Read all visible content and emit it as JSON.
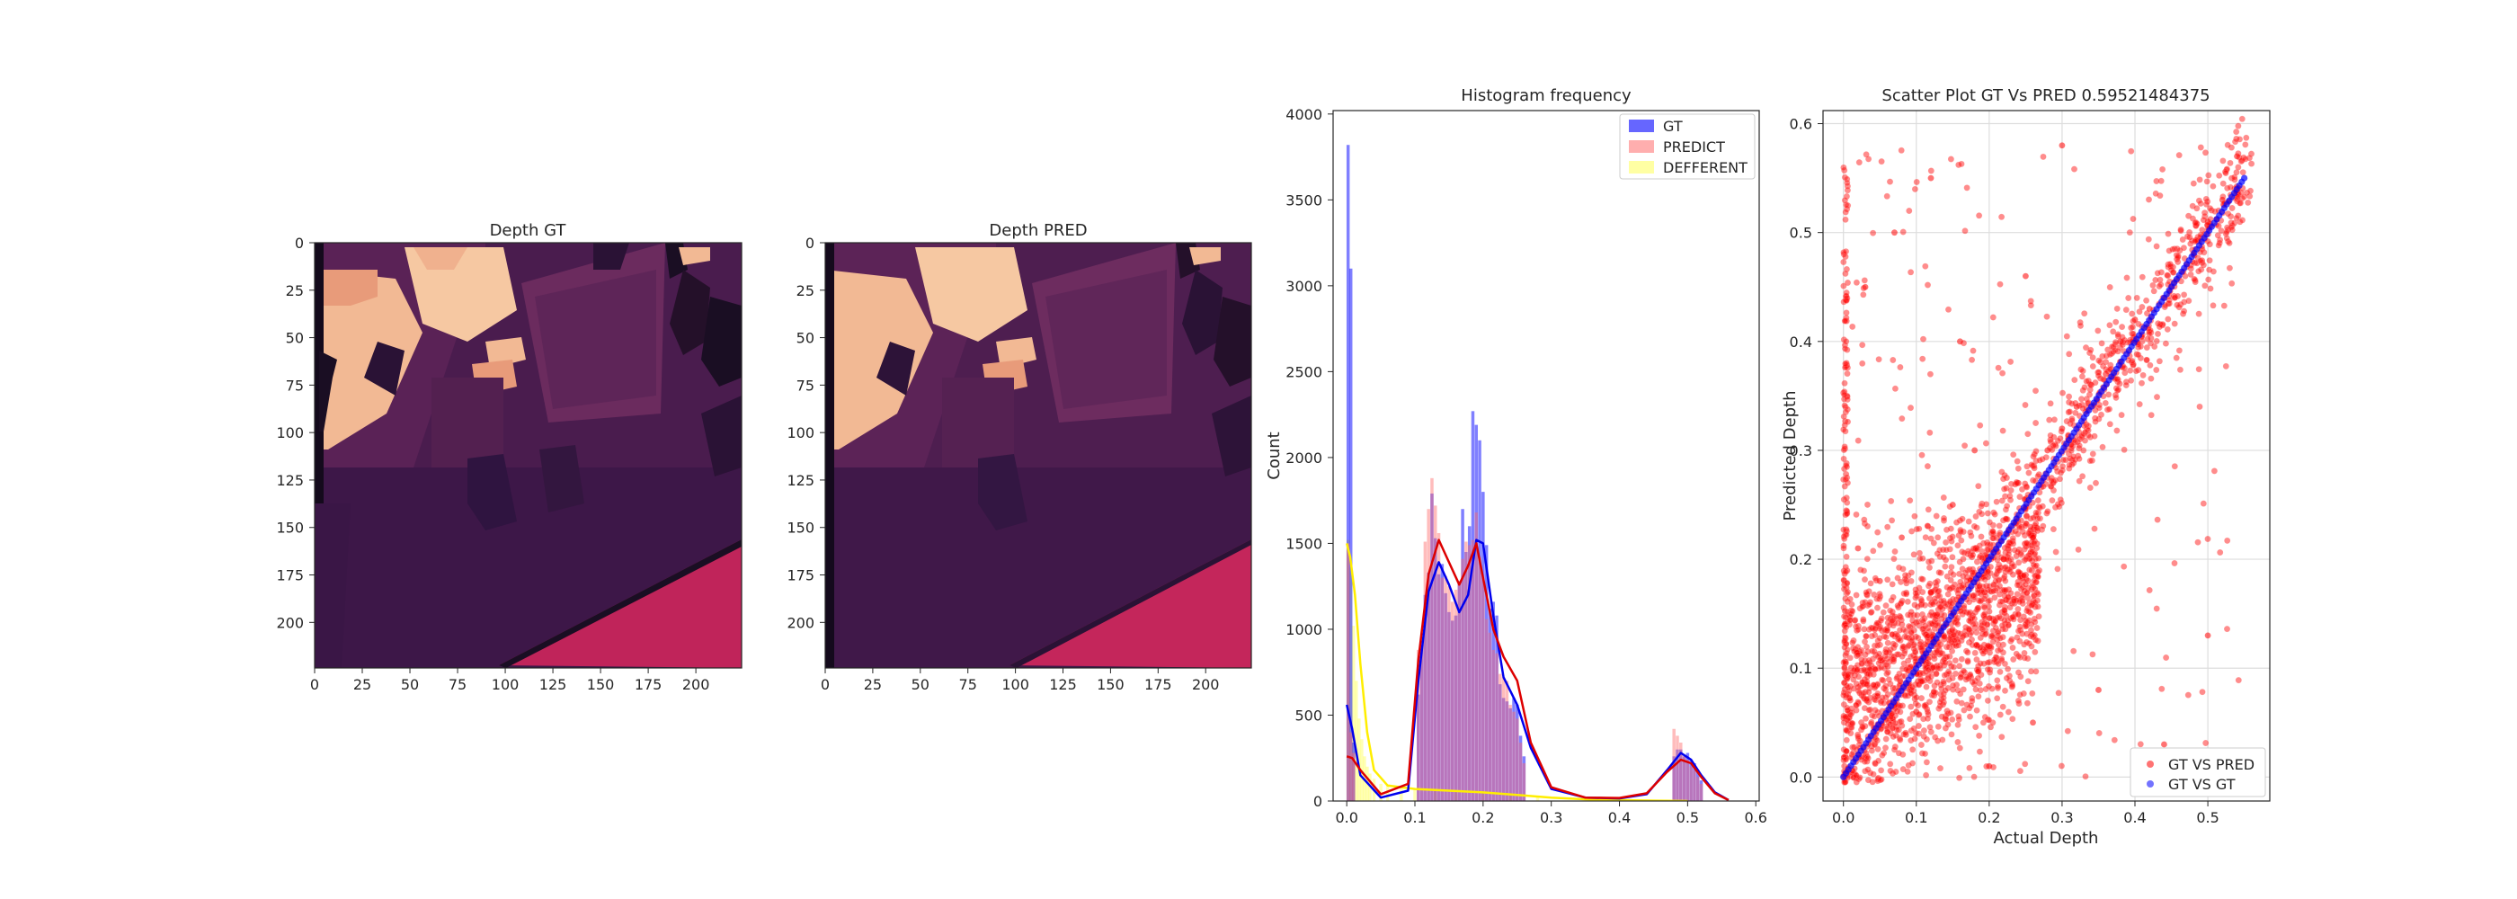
{
  "chart_data": [
    {
      "type": "heatmap",
      "title": "Depth GT",
      "xlim": [
        0,
        224
      ],
      "ylim": [
        224,
        0
      ],
      "xticks": [
        "0",
        "25",
        "50",
        "75",
        "100",
        "125",
        "150",
        "175",
        "200"
      ],
      "yticks": [
        "0",
        "25",
        "50",
        "75",
        "100",
        "125",
        "150",
        "175",
        "200"
      ],
      "colormap": "rocket",
      "note_values": "224x224 depth image; normalized depth 0-0.6 mapped to dark purple to light peach"
    },
    {
      "type": "heatmap",
      "title": "Depth PRED",
      "xlim": [
        0,
        224
      ],
      "ylim": [
        224,
        0
      ],
      "xticks": [
        "0",
        "25",
        "50",
        "75",
        "100",
        "125",
        "150",
        "175",
        "200"
      ],
      "yticks": [
        "0",
        "25",
        "50",
        "75",
        "100",
        "125",
        "150",
        "175",
        "200"
      ],
      "colormap": "rocket"
    },
    {
      "type": "bar",
      "title": "Histogram frequency",
      "xlabel": "",
      "ylabel": "Count",
      "xlim": [
        -0.02,
        0.605
      ],
      "ylim": [
        0,
        4020
      ],
      "xticks": [
        "0.0",
        "0.1",
        "0.2",
        "0.3",
        "0.4",
        "0.5",
        "0.6"
      ],
      "yticks": [
        "0",
        "500",
        "1000",
        "1500",
        "2000",
        "2500",
        "3000",
        "3500",
        "4000"
      ],
      "legend_position": "top-right",
      "series": [
        {
          "name": "GT",
          "color": "#0000ff",
          "kde": [
            [
              0,
              560
            ],
            [
              0.008,
              420
            ],
            [
              0.02,
              150
            ],
            [
              0.05,
              20
            ],
            [
              0.09,
              60
            ],
            [
              0.105,
              700
            ],
            [
              0.12,
              1220
            ],
            [
              0.135,
              1390
            ],
            [
              0.15,
              1260
            ],
            [
              0.165,
              1100
            ],
            [
              0.178,
              1200
            ],
            [
              0.19,
              1520
            ],
            [
              0.2,
              1500
            ],
            [
              0.215,
              1080
            ],
            [
              0.23,
              720
            ],
            [
              0.25,
              560
            ],
            [
              0.27,
              310
            ],
            [
              0.3,
              70
            ],
            [
              0.35,
              20
            ],
            [
              0.4,
              15
            ],
            [
              0.44,
              40
            ],
            [
              0.47,
              180
            ],
            [
              0.49,
              280
            ],
            [
              0.505,
              240
            ],
            [
              0.52,
              150
            ],
            [
              0.54,
              50
            ],
            [
              0.56,
              5
            ]
          ],
          "bins": [
            [
              0.002,
              3820
            ],
            [
              0.006,
              3100
            ],
            [
              0.01,
              340
            ],
            [
              0.105,
              620
            ],
            [
              0.11,
              900
            ],
            [
              0.115,
              1200
            ],
            [
              0.12,
              1330
            ],
            [
              0.125,
              1790
            ],
            [
              0.13,
              1530
            ],
            [
              0.135,
              1320
            ],
            [
              0.14,
              1380
            ],
            [
              0.145,
              1210
            ],
            [
              0.15,
              1100
            ],
            [
              0.155,
              1050
            ],
            [
              0.16,
              1080
            ],
            [
              0.165,
              1280
            ],
            [
              0.17,
              1700
            ],
            [
              0.175,
              1450
            ],
            [
              0.18,
              1600
            ],
            [
              0.185,
              2270
            ],
            [
              0.19,
              2190
            ],
            [
              0.195,
              2100
            ],
            [
              0.2,
              1800
            ],
            [
              0.205,
              1490
            ],
            [
              0.21,
              1120
            ],
            [
              0.215,
              1160
            ],
            [
              0.22,
              1080
            ],
            [
              0.225,
              680
            ],
            [
              0.23,
              600
            ],
            [
              0.235,
              580
            ],
            [
              0.24,
              540
            ],
            [
              0.245,
              600
            ],
            [
              0.25,
              560
            ],
            [
              0.255,
              380
            ],
            [
              0.26,
              260
            ],
            [
              0.48,
              260
            ],
            [
              0.485,
              300
            ],
            [
              0.49,
              300
            ],
            [
              0.495,
              260
            ],
            [
              0.5,
              280
            ],
            [
              0.505,
              240
            ],
            [
              0.51,
              220
            ],
            [
              0.515,
              180
            ],
            [
              0.52,
              120
            ]
          ]
        },
        {
          "name": "PREDICT",
          "color": "#ff6b6b",
          "kde": [
            [
              0,
              260
            ],
            [
              0.008,
              250
            ],
            [
              0.02,
              180
            ],
            [
              0.05,
              40
            ],
            [
              0.09,
              100
            ],
            [
              0.105,
              820
            ],
            [
              0.12,
              1320
            ],
            [
              0.135,
              1520
            ],
            [
              0.15,
              1390
            ],
            [
              0.165,
              1260
            ],
            [
              0.178,
              1370
            ],
            [
              0.19,
              1500
            ],
            [
              0.2,
              1300
            ],
            [
              0.215,
              1000
            ],
            [
              0.23,
              840
            ],
            [
              0.25,
              700
            ],
            [
              0.27,
              340
            ],
            [
              0.3,
              80
            ],
            [
              0.35,
              20
            ],
            [
              0.4,
              18
            ],
            [
              0.44,
              45
            ],
            [
              0.47,
              170
            ],
            [
              0.49,
              240
            ],
            [
              0.505,
              220
            ],
            [
              0.52,
              140
            ],
            [
              0.54,
              45
            ],
            [
              0.56,
              5
            ]
          ],
          "bins": [
            [
              0.002,
              1500
            ],
            [
              0.006,
              400
            ],
            [
              0.01,
              280
            ],
            [
              0.105,
              880
            ],
            [
              0.11,
              960
            ],
            [
              0.115,
              1510
            ],
            [
              0.12,
              1700
            ],
            [
              0.125,
              1880
            ],
            [
              0.13,
              1720
            ],
            [
              0.135,
              1560
            ],
            [
              0.14,
              1300
            ],
            [
              0.145,
              1310
            ],
            [
              0.15,
              1250
            ],
            [
              0.155,
              1160
            ],
            [
              0.16,
              1230
            ],
            [
              0.165,
              1260
            ],
            [
              0.17,
              1410
            ],
            [
              0.175,
              1510
            ],
            [
              0.18,
              1490
            ],
            [
              0.185,
              1520
            ],
            [
              0.19,
              1680
            ],
            [
              0.195,
              1420
            ],
            [
              0.2,
              1300
            ],
            [
              0.205,
              1060
            ],
            [
              0.21,
              980
            ],
            [
              0.215,
              880
            ],
            [
              0.22,
              860
            ],
            [
              0.225,
              740
            ],
            [
              0.23,
              720
            ],
            [
              0.235,
              700
            ],
            [
              0.24,
              560
            ],
            [
              0.245,
              520
            ],
            [
              0.25,
              480
            ],
            [
              0.255,
              340
            ],
            [
              0.26,
              220
            ],
            [
              0.48,
              420
            ],
            [
              0.485,
              380
            ],
            [
              0.49,
              340
            ],
            [
              0.495,
              260
            ],
            [
              0.5,
              240
            ],
            [
              0.505,
              200
            ],
            [
              0.51,
              180
            ],
            [
              0.515,
              140
            ],
            [
              0.52,
              100
            ]
          ]
        },
        {
          "name": "DEFFERENT",
          "color": "#ffff66",
          "kde": [
            [
              0,
              1500
            ],
            [
              0.005,
              1420
            ],
            [
              0.012,
              1200
            ],
            [
              0.02,
              800
            ],
            [
              0.03,
              400
            ],
            [
              0.04,
              180
            ],
            [
              0.06,
              90
            ],
            [
              0.1,
              70
            ],
            [
              0.15,
              60
            ],
            [
              0.2,
              50
            ],
            [
              0.25,
              35
            ],
            [
              0.3,
              20
            ],
            [
              0.35,
              10
            ],
            [
              0.4,
              5
            ],
            [
              0.45,
              2
            ],
            [
              0.5,
              0
            ]
          ],
          "bins": [
            [
              0.002,
              1520
            ],
            [
              0.006,
              1360
            ],
            [
              0.01,
              1020
            ],
            [
              0.014,
              700
            ],
            [
              0.018,
              480
            ],
            [
              0.022,
              360
            ],
            [
              0.026,
              260
            ],
            [
              0.03,
              200
            ],
            [
              0.034,
              160
            ],
            [
              0.04,
              130
            ],
            [
              0.05,
              100
            ],
            [
              0.06,
              90
            ],
            [
              0.08,
              80
            ],
            [
              0.1,
              75
            ],
            [
              0.13,
              70
            ],
            [
              0.16,
              60
            ],
            [
              0.2,
              50
            ],
            [
              0.24,
              40
            ],
            [
              0.28,
              30
            ]
          ]
        }
      ]
    },
    {
      "type": "scatter",
      "title": "Scatter Plot GT Vs PRED 0.59521484375",
      "xlabel": "Actual Depth",
      "ylabel": "Predicted Depth",
      "xlim": [
        -0.028,
        0.585
      ],
      "ylim": [
        -0.022,
        0.612
      ],
      "xticks": [
        "0.0",
        "0.1",
        "0.2",
        "0.3",
        "0.4",
        "0.5"
      ],
      "yticks": [
        "0.0",
        "0.1",
        "0.2",
        "0.3",
        "0.4",
        "0.5",
        "0.6"
      ],
      "grid": true,
      "legend_position": "bottom-right",
      "series": [
        {
          "name": "GT VS PRED",
          "color": "#ff0000",
          "points": [
            [
              0.02,
              0.21
            ],
            [
              0.05,
              0.18
            ],
            [
              0.08,
              0.22
            ],
            [
              0.1,
              0.06
            ],
            [
              0.12,
              0.17
            ],
            [
              0.15,
              0.25
            ],
            [
              0.18,
              0.3
            ],
            [
              0.2,
              0.12
            ],
            [
              0.22,
              0.2
            ],
            [
              0.24,
              0.27
            ],
            [
              0.26,
              0.22
            ],
            [
              0.28,
              0.3
            ],
            [
              0.3,
              0.32
            ],
            [
              0.32,
              0.34
            ],
            [
              0.34,
              0.36
            ],
            [
              0.36,
              0.37
            ],
            [
              0.38,
              0.4
            ],
            [
              0.4,
              0.42
            ],
            [
              0.42,
              0.43
            ],
            [
              0.45,
              0.45
            ],
            [
              0.48,
              0.48
            ],
            [
              0.5,
              0.51
            ],
            [
              0.52,
              0.53
            ],
            [
              0.54,
              0.57
            ],
            [
              0.03,
              0.45
            ],
            [
              0.07,
              0.5
            ],
            [
              0.12,
              0.55
            ],
            [
              0.16,
              0.4
            ],
            [
              0.25,
              0.46
            ],
            [
              0.3,
              0.58
            ],
            [
              0.2,
              0.01
            ],
            [
              0.26,
              0.05
            ],
            [
              0.35,
              0.08
            ],
            [
              0.44,
              0.03
            ],
            [
              0.5,
              0.13
            ]
          ]
        },
        {
          "name": "GT VS GT",
          "color": "#0000ff",
          "points": [
            [
              0,
              0
            ],
            [
              0.55,
              0.55
            ]
          ]
        }
      ]
    }
  ]
}
